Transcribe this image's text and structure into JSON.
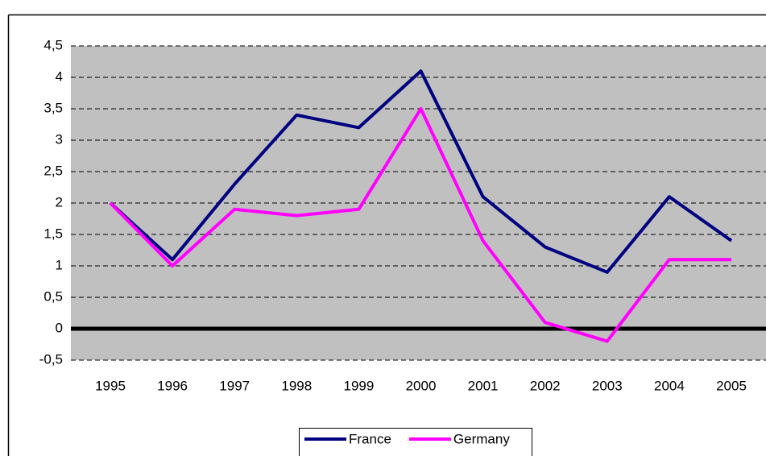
{
  "chart_data": {
    "type": "line",
    "categories": [
      "1995",
      "1996",
      "1997",
      "1998",
      "1999",
      "2000",
      "2001",
      "2002",
      "2003",
      "2004",
      "2005"
    ],
    "series": [
      {
        "name": "France",
        "color": "#000080",
        "values": [
          2.0,
          1.1,
          2.3,
          3.4,
          3.2,
          4.1,
          2.1,
          1.3,
          0.9,
          2.1,
          1.4
        ]
      },
      {
        "name": "Germany",
        "color": "#ff00ff",
        "values": [
          2.0,
          1.0,
          1.9,
          1.8,
          1.9,
          3.5,
          1.4,
          0.1,
          -0.2,
          1.1,
          1.1
        ]
      }
    ],
    "ylim": [
      -0.5,
      4.5
    ],
    "yticks": [
      {
        "value": -0.5,
        "label": "-0,5"
      },
      0,
      {
        "value": 0.5,
        "label": "0,5"
      },
      1,
      {
        "value": 1.5,
        "label": "1,5"
      },
      2,
      {
        "value": 2.5,
        "label": "2,5"
      },
      3,
      {
        "value": 3.5,
        "label": "3,5"
      },
      4,
      {
        "value": 4.5,
        "label": "4,5"
      }
    ],
    "grid": true,
    "legend": "bottom"
  }
}
